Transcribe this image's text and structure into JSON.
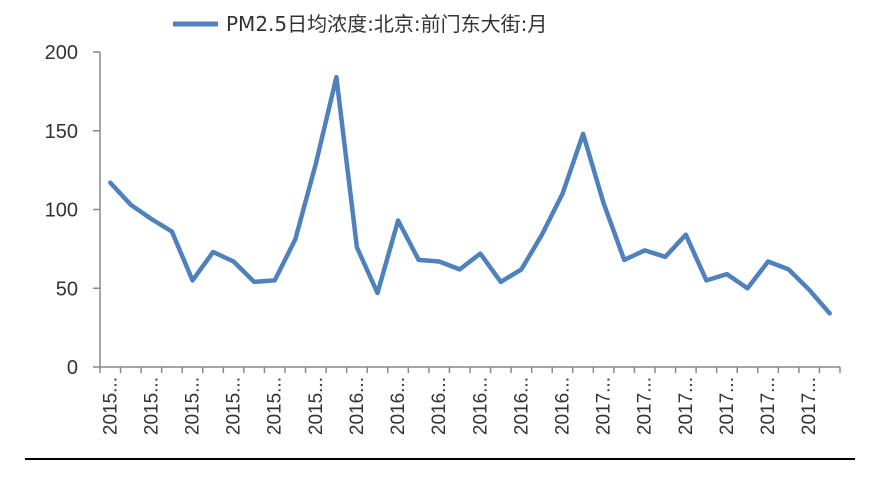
{
  "chart_data": {
    "type": "line",
    "legend_position": "top",
    "grid": false,
    "ylim": [
      0,
      200
    ],
    "yticks": [
      0,
      50,
      100,
      150,
      200
    ],
    "x": [
      "2015...",
      "2015...",
      "2015...",
      "2015...",
      "2015...",
      "2015...",
      "2015...",
      "2015...",
      "2015...",
      "2015...",
      "2015...",
      "2015...",
      "2016...",
      "2016...",
      "2016...",
      "2016...",
      "2016...",
      "2016...",
      "2016...",
      "2016...",
      "2016...",
      "2016...",
      "2016...",
      "2016...",
      "2017...",
      "2017...",
      "2017...",
      "2017...",
      "2017...",
      "2017...",
      "2017...",
      "2017...",
      "2017...",
      "2017...",
      "2017...",
      "2017..."
    ],
    "x_label_every": 2,
    "series": [
      {
        "name": "PM2.5日均浓度:北京:前门东大街:月",
        "color": "#4F81BD",
        "values": [
          117,
          103,
          94,
          86,
          55,
          73,
          67,
          54,
          55,
          81,
          129,
          184,
          76,
          47,
          93,
          68,
          67,
          62,
          72,
          54,
          62,
          84,
          110,
          148,
          104,
          68,
          74,
          70,
          84,
          55,
          59,
          50,
          67,
          62,
          49,
          34
        ]
      }
    ]
  }
}
